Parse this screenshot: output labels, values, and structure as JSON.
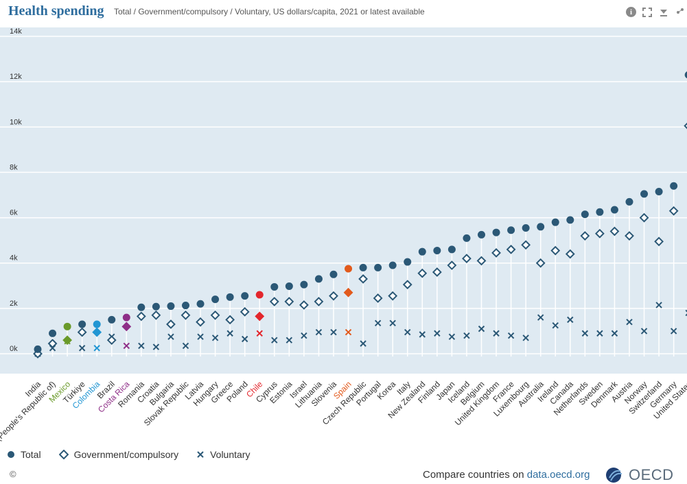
{
  "header": {
    "title": "Health spending",
    "subtitle": "Total / Government/compulsory / Voluntary, US dollars/capita, 2021 or latest available"
  },
  "legend": {
    "total": "Total",
    "government": "Government/compulsory",
    "voluntary": "Voluntary"
  },
  "footer": {
    "copyright": "©",
    "compare_text": "Compare countries on ",
    "compare_link": "data.oecd.org",
    "logo_text": "OECD"
  },
  "colors": {
    "default": "#2b5876",
    "plot_bg": "#dfeaf2",
    "Mexico": "#6a9a2a",
    "Colombia": "#2196d3",
    "Costa Rica": "#8e2e87",
    "Chile": "#e3262c",
    "Spain": "#e25a1c"
  },
  "chart_data": {
    "type": "scatter",
    "title": "Health spending",
    "ylim": [
      0,
      14000
    ],
    "yticks": [
      0,
      2000,
      4000,
      6000,
      8000,
      10000,
      12000,
      14000
    ],
    "ytick_labels": [
      "0k",
      "2k",
      "4k",
      "6k",
      "8k",
      "10k",
      "12k",
      "14k"
    ],
    "grid": true,
    "legend_position": "bottom-left",
    "categories": [
      "India",
      "China (People's Republic of)",
      "Mexico",
      "Türkiye",
      "Colombia",
      "Brazil",
      "Costa Rica",
      "Romania",
      "Croatia",
      "Bulgaria",
      "Slovak Republic",
      "Latvia",
      "Hungary",
      "Greece",
      "Poland",
      "Chile",
      "Cyprus",
      "Estonia",
      "Israel",
      "Lithuania",
      "Slovenia",
      "Spain",
      "Czech Republic",
      "Portugal",
      "Korea",
      "Italy",
      "New Zealand",
      "Finland",
      "Japan",
      "Iceland",
      "Belgium",
      "United Kingdom",
      "France",
      "Luxembourg",
      "Australia",
      "Ireland",
      "Canada",
      "Netherlands",
      "Sweden",
      "Denmark",
      "Austria",
      "Norway",
      "Switzerland",
      "Germany",
      "United States"
    ],
    "series": [
      {
        "name": "Total",
        "marker": "circle",
        "values": [
          200,
          900,
          1200,
          1300,
          1300,
          1500,
          1600,
          2050,
          2080,
          2100,
          2130,
          2200,
          2400,
          2500,
          2550,
          2600,
          2950,
          2980,
          3050,
          3300,
          3500,
          3750,
          3800,
          3800,
          3900,
          4050,
          4500,
          4550,
          4600,
          5100,
          5250,
          5350,
          5450,
          5550,
          5600,
          5800,
          5900,
          6150,
          6250,
          6350,
          6700,
          7050,
          7150,
          7400,
          12300
        ]
      },
      {
        "name": "Government/compulsory",
        "marker": "diamond",
        "values": [
          0,
          450,
          600,
          950,
          950,
          600,
          1200,
          1650,
          1700,
          1300,
          1700,
          1400,
          1700,
          1500,
          1850,
          1650,
          2300,
          2300,
          2150,
          2300,
          2550,
          2700,
          3300,
          2450,
          2550,
          3050,
          3550,
          3600,
          3900,
          4200,
          4100,
          4450,
          4600,
          4800,
          4000,
          4550,
          4400,
          5200,
          5300,
          5400,
          5200,
          6000,
          4950,
          6300,
          10050
        ]
      },
      {
        "name": "Voluntary",
        "marker": "x",
        "values": [
          0,
          250,
          550,
          250,
          250,
          750,
          350,
          350,
          300,
          750,
          350,
          750,
          700,
          900,
          650,
          900,
          600,
          600,
          800,
          950,
          950,
          950,
          450,
          1350,
          1350,
          950,
          850,
          900,
          750,
          800,
          1100,
          900,
          800,
          700,
          1600,
          1250,
          1500,
          900,
          900,
          900,
          1400,
          1000,
          2150,
          1000,
          1800
        ]
      }
    ]
  }
}
